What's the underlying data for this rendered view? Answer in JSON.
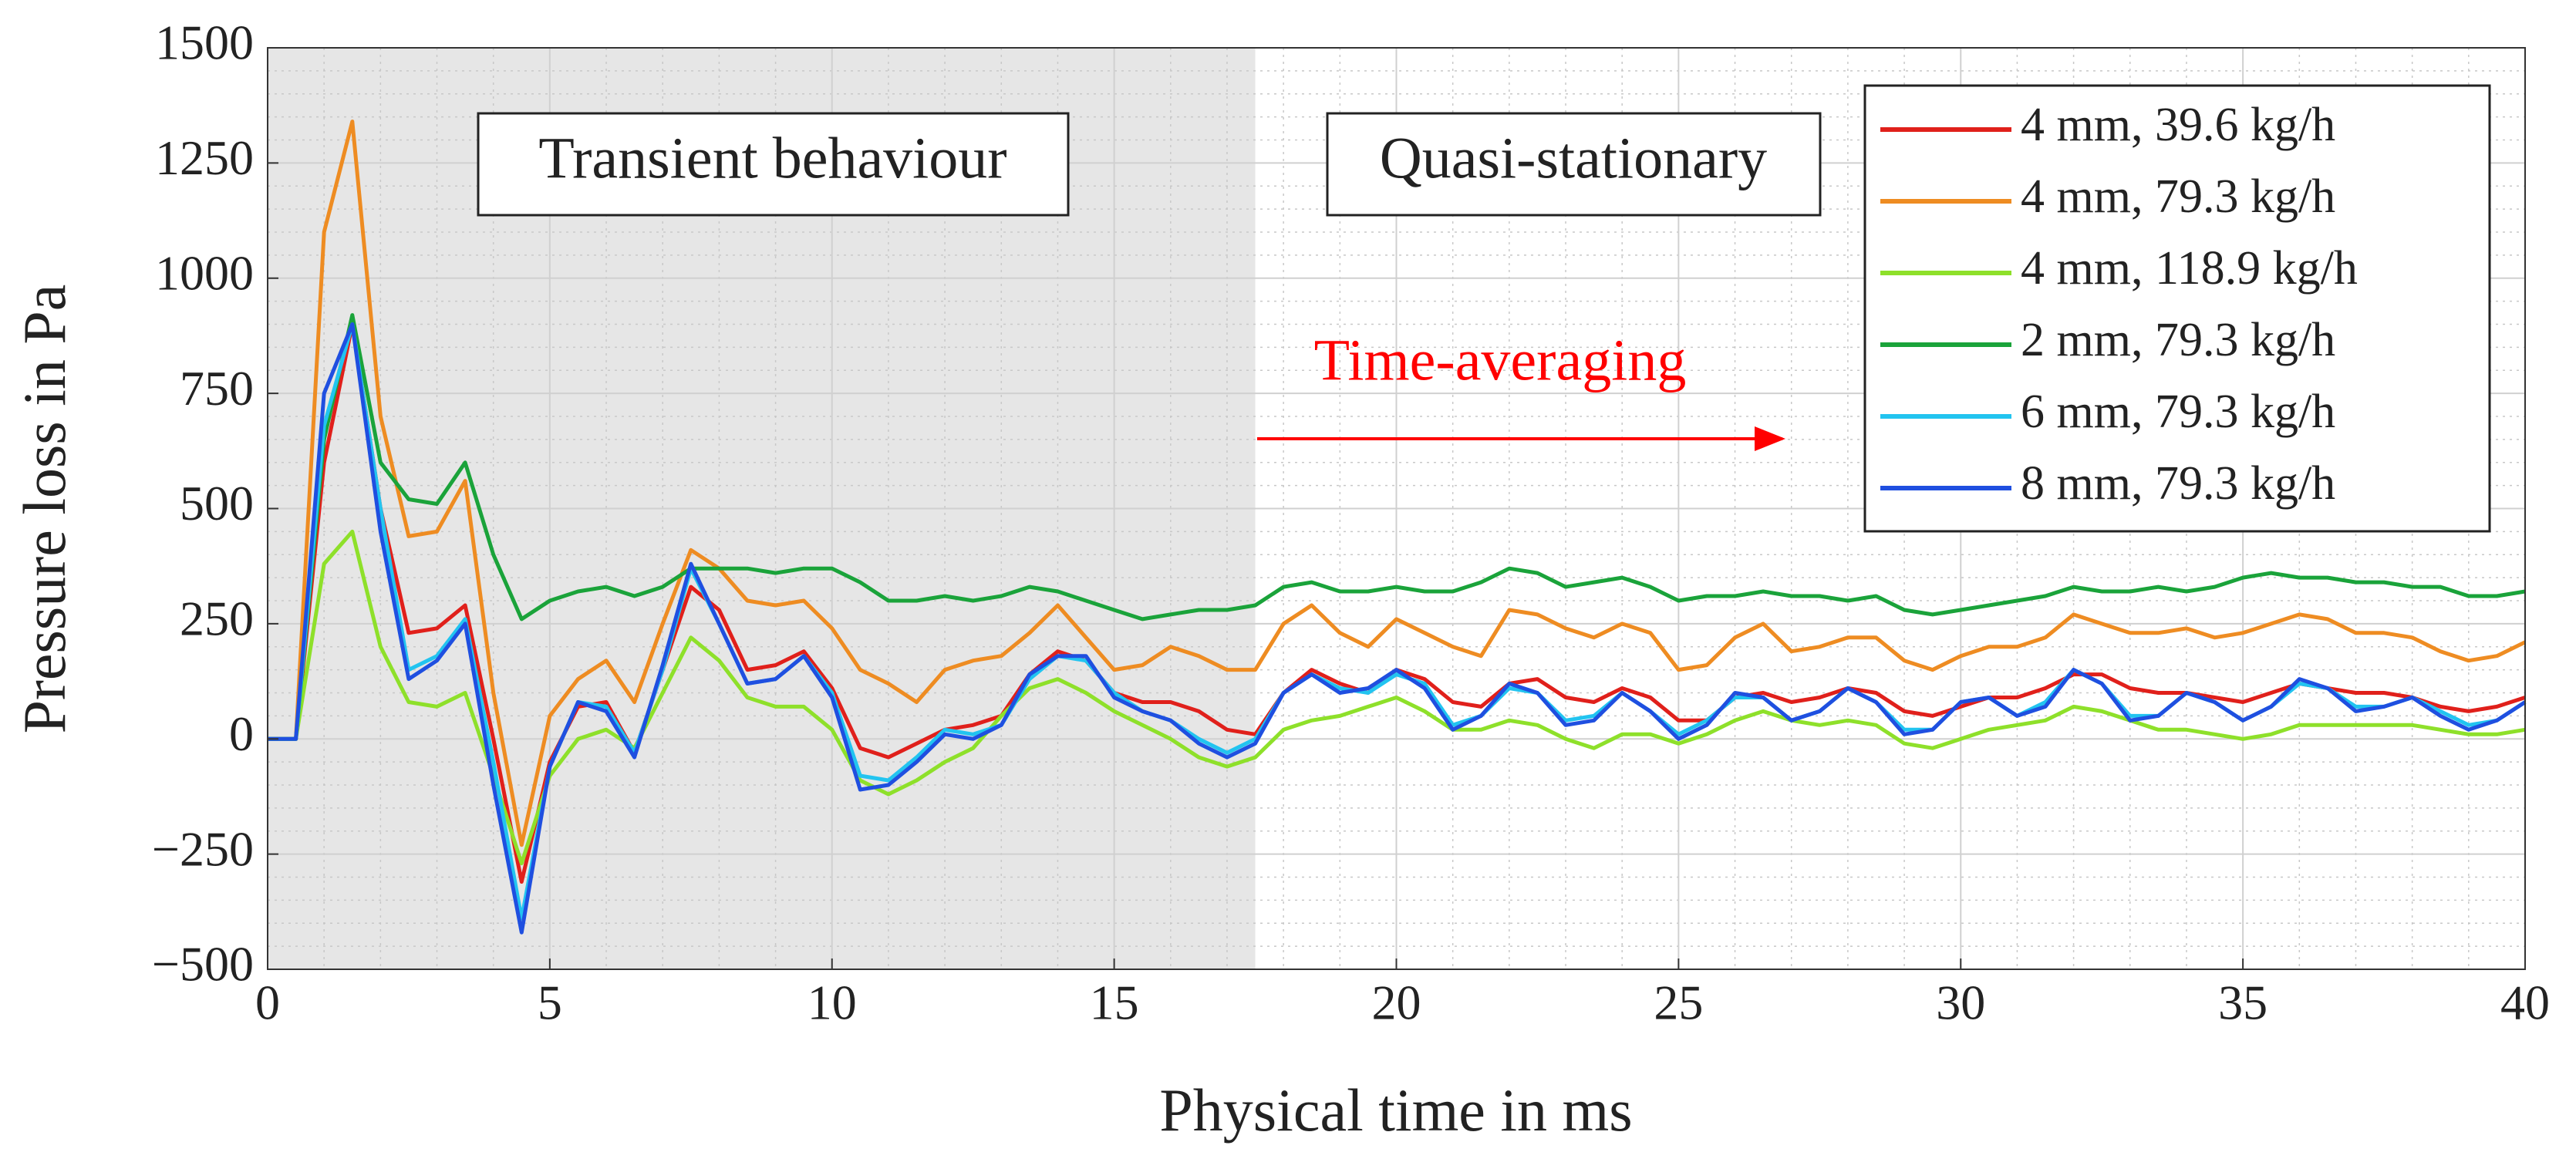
{
  "chart_data": {
    "type": "line",
    "xlabel": "Physical time in ms",
    "ylabel": "Pressure loss in Pa",
    "xlim": [
      0,
      40
    ],
    "xticks": [
      0,
      5,
      10,
      15,
      20,
      25,
      30,
      35,
      40
    ],
    "ylim": [
      -500,
      1500
    ],
    "yticks": [
      {
        "value": -500,
        "label": "−500"
      },
      {
        "value": -250,
        "label": "−250"
      },
      0,
      250,
      500,
      750,
      1000,
      1250,
      1500
    ],
    "grid": true,
    "minor_grid": true,
    "legend": "upper right",
    "shaded_xrange": [
      0,
      17.5
    ],
    "annotations": [
      "Transient behaviour",
      "Quasi-stationary",
      "Time-averaging"
    ],
    "x": [
      0,
      0.5,
      1,
      1.5,
      2,
      2.5,
      3,
      3.5,
      4,
      4.5,
      5,
      5.5,
      6,
      6.5,
      7,
      7.5,
      8,
      8.5,
      9,
      9.5,
      10,
      10.5,
      11,
      11.5,
      12,
      12.5,
      13,
      13.5,
      14,
      14.5,
      15,
      15.5,
      16,
      16.5,
      17,
      17.5,
      18,
      18.5,
      19,
      19.5,
      20,
      20.5,
      21,
      21.5,
      22,
      22.5,
      23,
      23.5,
      24,
      24.5,
      25,
      25.5,
      26,
      26.5,
      27,
      27.5,
      28,
      28.5,
      29,
      29.5,
      30,
      30.5,
      31,
      31.5,
      32,
      32.5,
      33,
      33.5,
      34,
      34.5,
      35,
      35.5,
      36,
      36.5,
      37,
      37.5,
      38,
      38.5,
      39,
      39.5,
      40
    ],
    "series": [
      {
        "name": "4 mm, 39.6 kg/h",
        "color": "#e0201b",
        "values": [
          0,
          0,
          600,
          900,
          500,
          230,
          240,
          290,
          0,
          -310,
          -50,
          70,
          80,
          -30,
          150,
          330,
          280,
          150,
          160,
          190,
          110,
          -20,
          -40,
          -10,
          20,
          30,
          50,
          140,
          190,
          170,
          100,
          80,
          80,
          60,
          20,
          10,
          100,
          150,
          120,
          100,
          150,
          130,
          80,
          70,
          120,
          130,
          90,
          80,
          110,
          90,
          40,
          40,
          90,
          100,
          80,
          90,
          110,
          100,
          60,
          50,
          70,
          90,
          90,
          110,
          140,
          140,
          110,
          100,
          100,
          90,
          80,
          100,
          120,
          110,
          100,
          100,
          90,
          70,
          60,
          70,
          90
        ]
      },
      {
        "name": "4 mm, 79.3 kg/h",
        "color": "#ee8c22",
        "values": [
          0,
          0,
          1100,
          1340,
          700,
          440,
          450,
          560,
          100,
          -230,
          50,
          130,
          170,
          80,
          250,
          410,
          370,
          300,
          290,
          300,
          240,
          150,
          120,
          80,
          150,
          170,
          180,
          230,
          290,
          220,
          150,
          160,
          200,
          180,
          150,
          150,
          250,
          290,
          230,
          200,
          260,
          230,
          200,
          180,
          280,
          270,
          240,
          220,
          250,
          230,
          150,
          160,
          220,
          250,
          190,
          200,
          220,
          220,
          170,
          150,
          180,
          200,
          200,
          220,
          270,
          250,
          230,
          230,
          240,
          220,
          230,
          250,
          270,
          260,
          230,
          230,
          220,
          190,
          170,
          180,
          210
        ]
      },
      {
        "name": "4 mm, 118.9 kg/h",
        "color": "#8ee02a",
        "values": [
          0,
          0,
          380,
          450,
          200,
          80,
          70,
          100,
          -80,
          -270,
          -80,
          0,
          20,
          -20,
          100,
          220,
          170,
          90,
          70,
          70,
          20,
          -90,
          -120,
          -90,
          -50,
          -20,
          50,
          110,
          130,
          100,
          60,
          30,
          0,
          -40,
          -60,
          -40,
          20,
          40,
          50,
          70,
          90,
          60,
          20,
          20,
          40,
          30,
          0,
          -20,
          10,
          10,
          -10,
          10,
          40,
          60,
          40,
          30,
          40,
          30,
          -10,
          -20,
          0,
          20,
          30,
          40,
          70,
          60,
          40,
          20,
          20,
          10,
          0,
          10,
          30,
          30,
          30,
          30,
          30,
          20,
          10,
          10,
          20
        ]
      },
      {
        "name": "2 mm, 79.3 kg/h",
        "color": "#1aa33a",
        "values": [
          0,
          0,
          650,
          920,
          600,
          520,
          510,
          600,
          400,
          260,
          300,
          320,
          330,
          310,
          330,
          370,
          370,
          370,
          360,
          370,
          370,
          340,
          300,
          300,
          310,
          300,
          310,
          330,
          320,
          300,
          280,
          260,
          270,
          280,
          280,
          290,
          330,
          340,
          320,
          320,
          330,
          320,
          320,
          340,
          370,
          360,
          330,
          340,
          350,
          330,
          300,
          310,
          310,
          320,
          310,
          310,
          300,
          310,
          280,
          270,
          280,
          290,
          300,
          310,
          330,
          320,
          320,
          330,
          320,
          330,
          350,
          360,
          350,
          350,
          340,
          340,
          330,
          330,
          310,
          310,
          320
        ]
      },
      {
        "name": "6 mm, 79.3 kg/h",
        "color": "#22c4f0",
        "values": [
          0,
          0,
          680,
          900,
          500,
          150,
          180,
          260,
          -50,
          -390,
          -60,
          80,
          70,
          -30,
          150,
          370,
          250,
          120,
          130,
          180,
          100,
          -80,
          -90,
          -40,
          20,
          10,
          30,
          130,
          180,
          170,
          100,
          60,
          40,
          0,
          -30,
          0,
          100,
          140,
          110,
          100,
          140,
          120,
          30,
          50,
          110,
          100,
          40,
          50,
          100,
          60,
          10,
          40,
          90,
          90,
          40,
          60,
          110,
          80,
          20,
          20,
          80,
          90,
          50,
          80,
          150,
          120,
          50,
          50,
          100,
          80,
          40,
          70,
          120,
          110,
          70,
          70,
          90,
          60,
          30,
          40,
          80
        ]
      },
      {
        "name": "8 mm, 79.3 kg/h",
        "color": "#1f4fe0",
        "values": [
          0,
          0,
          750,
          900,
          450,
          130,
          170,
          250,
          -100,
          -420,
          -60,
          80,
          60,
          -40,
          160,
          380,
          250,
          120,
          130,
          180,
          90,
          -110,
          -100,
          -50,
          10,
          0,
          30,
          140,
          180,
          180,
          90,
          60,
          40,
          -10,
          -40,
          -10,
          100,
          140,
          100,
          110,
          150,
          110,
          20,
          50,
          120,
          100,
          30,
          40,
          100,
          60,
          0,
          30,
          100,
          90,
          40,
          60,
          110,
          80,
          10,
          20,
          80,
          90,
          50,
          70,
          150,
          120,
          40,
          50,
          100,
          80,
          40,
          70,
          130,
          110,
          60,
          70,
          90,
          50,
          20,
          40,
          80
        ]
      }
    ]
  }
}
